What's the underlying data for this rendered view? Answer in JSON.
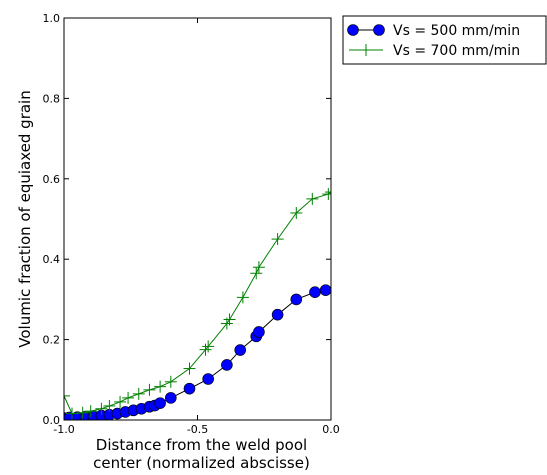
{
  "chart_data": {
    "type": "line",
    "title": "",
    "xlabel_lines": [
      "Distance from the weld pool",
      "center (normalized abscisse)"
    ],
    "ylabel": "Volumic fraction of equiaxed grain",
    "xlim": [
      -1.0,
      0.0
    ],
    "ylim": [
      0.0,
      1.0
    ],
    "xticks": [
      -1.0,
      -0.5,
      0.0
    ],
    "xtick_labels": [
      "-1.0",
      "-0.5",
      "0.0"
    ],
    "yticks": [
      0.0,
      0.2,
      0.4,
      0.6,
      0.8,
      1.0
    ],
    "ytick_labels": [
      "0.0",
      "0.2",
      "0.4",
      "0.6",
      "0.8",
      "1.0"
    ],
    "grid": false,
    "legend_position": "outside-top-right",
    "series": [
      {
        "name": "Vs = 500 mm/min",
        "color": "#0000ff",
        "marker": "circle",
        "x": [
          -1.0,
          -0.98,
          -0.95,
          -0.92,
          -0.89,
          -0.86,
          -0.83,
          -0.8,
          -0.77,
          -0.74,
          -0.71,
          -0.68,
          -0.66,
          -0.64,
          -0.6,
          -0.53,
          -0.46,
          -0.39,
          -0.34,
          -0.28,
          -0.27,
          -0.2,
          -0.13,
          -0.06,
          -0.02
        ],
        "y": [
          0.005,
          0.006,
          0.007,
          0.008,
          0.009,
          0.011,
          0.013,
          0.016,
          0.02,
          0.024,
          0.028,
          0.033,
          0.036,
          0.042,
          0.055,
          0.078,
          0.102,
          0.137,
          0.174,
          0.208,
          0.219,
          0.262,
          0.3,
          0.318,
          0.323
        ]
      },
      {
        "name": "Vs = 700 mm/min",
        "color": "#008000",
        "marker": "plus",
        "x": [
          -1.0,
          -0.97,
          -0.93,
          -0.9,
          -0.86,
          -0.83,
          -0.79,
          -0.76,
          -0.72,
          -0.68,
          -0.64,
          -0.6,
          -0.53,
          -0.47,
          -0.46,
          -0.39,
          -0.38,
          -0.33,
          -0.28,
          -0.27,
          -0.2,
          -0.13,
          -0.07,
          -0.01,
          0.0
        ],
        "y": [
          0.06,
          0.016,
          0.018,
          0.022,
          0.028,
          0.035,
          0.045,
          0.055,
          0.065,
          0.075,
          0.083,
          0.095,
          0.128,
          0.175,
          0.183,
          0.24,
          0.25,
          0.305,
          0.365,
          0.38,
          0.45,
          0.515,
          0.55,
          0.562,
          0.567
        ]
      }
    ]
  }
}
